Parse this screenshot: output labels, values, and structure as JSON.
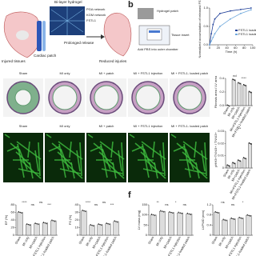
{
  "panel_a": {
    "hydrogel": "Bi-layer hydrogel",
    "network_1": "PGA network",
    "network_2": "KGM network",
    "drug": "FSTL1",
    "injured": "Injured tissues",
    "patch": "Cardiac patch",
    "release": "Prolonged release",
    "reduced": "Reduced injuries"
  },
  "panel_b": {
    "letter": "b",
    "patch": "Hydrogel patch",
    "insert": "Tissue insert",
    "pbs": "Add PBS into outer chamber"
  },
  "panel_f": {
    "letter": "f"
  },
  "histology_labels": [
    "Sham",
    "MI only",
    "MI + patch",
    "MI + FSTL1 injection",
    "MI + FSTL1- loaded patch"
  ],
  "staining_labels": [
    "Sham",
    "MI only",
    "MI + patch",
    "MI + FSTL1 injection",
    "MI + FSTL1- loaded patch"
  ],
  "charts": [
    {
      "type": "line",
      "y_label": "Normalized accumulation of released FSTL1",
      "x_label": "Time (h)",
      "x": [
        0,
        4,
        8,
        12,
        24,
        48,
        72,
        96
      ],
      "xlim": [
        0,
        100
      ],
      "xticks": [
        0,
        20,
        40,
        60,
        80,
        100
      ],
      "ylim": [
        0,
        1
      ],
      "yticks": [
        {
          "value": 0,
          "label": "0.0"
        },
        0.5,
        {
          "value": 1,
          "label": "1.0"
        }
      ],
      "series": [
        {
          "name": "FSTL1 loaded",
          "color": "#1f3f99",
          "values": [
            0,
            0.3,
            0.55,
            0.7,
            0.85,
            0.92,
            0.96,
            1
          ]
        },
        {
          "name": "FSTL1 loaded",
          "color": "#6fa8dc",
          "values": [
            0,
            0.1,
            0.2,
            0.3,
            0.5,
            0.7,
            0.85,
            0.95
          ]
        }
      ]
    },
    {
      "type": "bar",
      "y_label": "Fibrosis area / LV area",
      "categories": [
        "Sham",
        "MI only",
        "MI+patch",
        "MI+FSTL1 injection",
        "MI+FSTL1-loaded patch"
      ],
      "values": [
        0,
        0.38,
        0.33,
        0.3,
        0.2
      ],
      "ylim": [
        0,
        0.4
      ],
      "yticks": [
        {
          "value": 0,
          "label": "0.0"
        },
        0.2,
        0.4
      ],
      "color": "#dddddd",
      "annotations": [
        "nd",
        "****"
      ]
    },
    {
      "type": "bar",
      "y_label": "pHH3+TNNI3+ / TNNI3+",
      "categories": [
        "Sham",
        "MI only",
        "MI+patch",
        "MI+FSTL1 injection",
        "MI+FSTL1-loaded patch"
      ],
      "values": [
        0.002,
        0.004,
        0.006,
        0.008,
        0.02
      ],
      "ylim": [
        0,
        0.03
      ],
      "yticks": [
        0,
        0.01,
        0.02,
        0.03
      ],
      "color": "#dddddd",
      "annotations": [
        "***"
      ]
    },
    {
      "type": "bar",
      "y_label": "EF (%)",
      "categories": [
        "Sham",
        "MI only",
        "MI+patch",
        "MI+FSTL1 injection",
        "MI+FSTL1-loaded patch"
      ],
      "values": [
        60,
        28,
        30,
        32,
        38
      ],
      "ylim": [
        0,
        80
      ],
      "yticks": [
        0,
        20,
        40,
        60,
        80
      ],
      "color": "#dddddd",
      "annotations": [
        "****",
        "ns",
        "ns",
        "***"
      ]
    },
    {
      "type": "bar",
      "y_label": "FS (%)",
      "categories": [
        "Sham",
        "MI only",
        "MI+patch",
        "MI+FSTL1 injection",
        "MI+FSTL1-loaded patch"
      ],
      "values": [
        32,
        13,
        14,
        15,
        18
      ],
      "ylim": [
        0,
        40
      ],
      "yticks": [
        0,
        10,
        20,
        30,
        40
      ],
      "color": "#dddddd",
      "annotations": [
        "****",
        "ns",
        "ns",
        "***"
      ]
    },
    {
      "type": "bar",
      "y_label": "LV mass (mg)",
      "categories": [
        "Sham",
        "MI only",
        "MI+patch",
        "MI+FSTL1 injection",
        "MI+FSTL1-loaded patch"
      ],
      "values": [
        100,
        118,
        112,
        110,
        105
      ],
      "ylim": [
        0,
        150
      ],
      "yticks": [
        0,
        50,
        100,
        150
      ],
      "color": "#dddddd",
      "annotations": [
        "**",
        "ns",
        "*",
        "ns"
      ]
    },
    {
      "type": "bar",
      "y_label": "LVPWD (mm)",
      "categories": [
        "Sham",
        "MI only",
        "MI+patch",
        "MI+FSTL1 injection",
        "MI+FSTL1-loaded patch"
      ],
      "values": [
        0.9,
        0.6,
        0.65,
        0.68,
        0.78
      ],
      "ylim": [
        0,
        1.2
      ],
      "yticks": [
        0,
        0.4,
        0.8,
        1.2
      ],
      "color": "#dddddd",
      "annotations": [
        "ns",
        "ns",
        "*"
      ]
    }
  ]
}
